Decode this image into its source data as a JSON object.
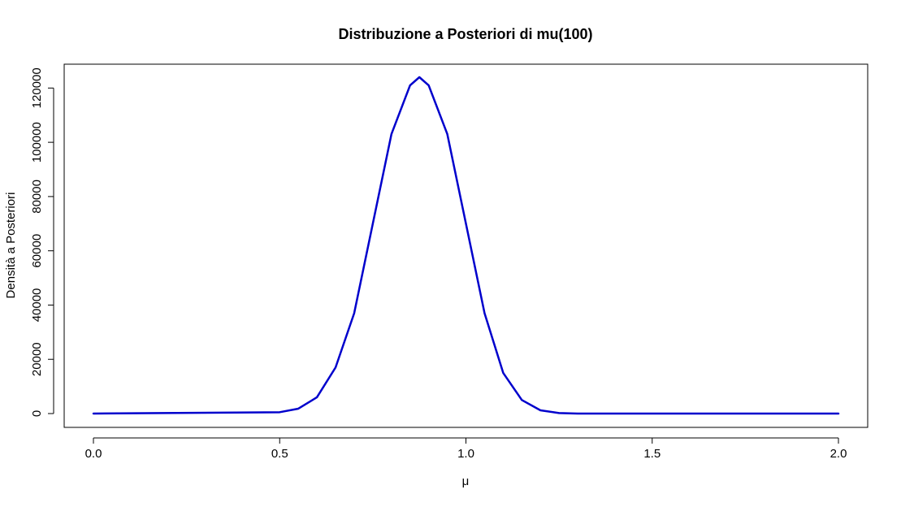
{
  "chart_data": {
    "type": "line",
    "title": "Distribuzione a Posteriori di mu(100)",
    "xlabel": "μ",
    "ylabel": "Densità a Posteriori",
    "xlim": [
      0,
      2
    ],
    "ylim": [
      0,
      124000
    ],
    "x_ticks": [
      0.0,
      0.5,
      1.0,
      1.5,
      2.0
    ],
    "x_tick_labels": [
      "0.0",
      "0.5",
      "1.0",
      "1.5",
      "2.0"
    ],
    "y_ticks": [
      0,
      20000,
      40000,
      60000,
      80000,
      100000,
      120000
    ],
    "y_tick_labels": [
      "0",
      "20000",
      "40000",
      "60000",
      "80000",
      "100000",
      "120000"
    ],
    "grid": false,
    "legend": "none",
    "series": [
      {
        "color": "#0000cc",
        "x": [
          0.0,
          0.5,
          0.55,
          0.6,
          0.65,
          0.7,
          0.75,
          0.8,
          0.85,
          0.875,
          0.9,
          0.95,
          1.0,
          1.05,
          1.1,
          1.15,
          1.2,
          1.25,
          1.3,
          2.0
        ],
        "y": [
          0,
          500,
          1800,
          6000,
          17000,
          37000,
          70000,
          103000,
          121000,
          124000,
          121000,
          103000,
          70000,
          37000,
          15000,
          5000,
          1200,
          200,
          0,
          0
        ]
      }
    ]
  }
}
